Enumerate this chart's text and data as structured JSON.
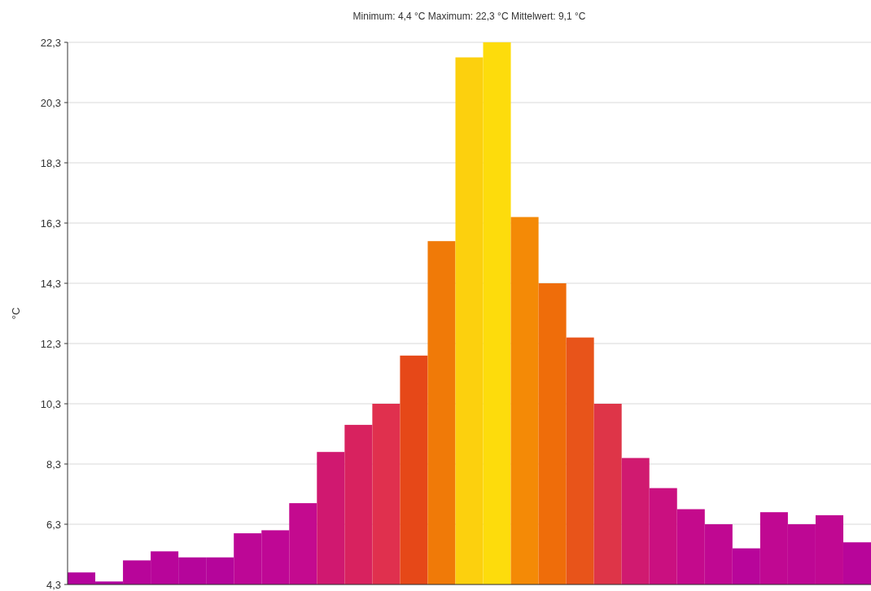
{
  "chart_data": {
    "type": "bar",
    "title": "Minimum: 4,4 °C Maximum: 22,3 °C Mittelwert: 9,1 °C",
    "ylabel": "°C",
    "categories": [
      null,
      null,
      null,
      null,
      null,
      null,
      null,
      null,
      null,
      null,
      null,
      null,
      null,
      null,
      null,
      null,
      null,
      null,
      null,
      null,
      null,
      null,
      null,
      null,
      null,
      null,
      null,
      null,
      null
    ],
    "values": [
      4.7,
      4.4,
      5.1,
      5.4,
      5.2,
      5.2,
      6.0,
      6.1,
      7.0,
      8.7,
      9.6,
      10.3,
      11.9,
      15.7,
      21.8,
      22.3,
      16.5,
      14.3,
      12.5,
      10.3,
      8.5,
      7.5,
      6.8,
      6.3,
      5.5,
      6.7,
      6.3,
      6.6,
      5.7
    ],
    "colors": [
      "#b4049c",
      "#b0049e",
      "#b8059a",
      "#b8059a",
      "#b5059b",
      "#b5059b",
      "#bd0796",
      "#bf0795",
      "#c40a8f",
      "#d01870",
      "#d8225f",
      "#e0304e",
      "#e64818",
      "#f07a08",
      "#fcd00e",
      "#fddc0c",
      "#f48a06",
      "#ef6d0a",
      "#e8541a",
      "#de3548",
      "#d01a70",
      "#ca1080",
      "#c40a8c",
      "#c00892",
      "#b8059a",
      "#c00892",
      "#be0794",
      "#c00892",
      "#b8059a"
    ],
    "ylim": [
      4.3,
      22.3
    ],
    "yticks": [
      {
        "value": 4.3,
        "label": "4,3"
      },
      {
        "value": 6.3,
        "label": "6,3"
      },
      {
        "value": 8.3,
        "label": "8,3"
      },
      {
        "value": 10.3,
        "label": "10,3"
      },
      {
        "value": 12.3,
        "label": "12,3"
      },
      {
        "value": 14.3,
        "label": "14,3"
      },
      {
        "value": 16.3,
        "label": "16,3"
      },
      {
        "value": 18.3,
        "label": "18,3"
      },
      {
        "value": 20.3,
        "label": "20,3"
      },
      {
        "value": 22.3,
        "label": "22,3"
      }
    ],
    "grid": "y"
  }
}
